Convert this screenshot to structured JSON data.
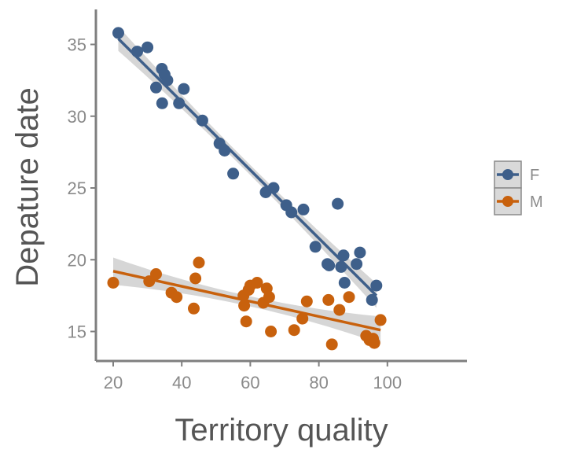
{
  "chart_data": {
    "type": "scatter",
    "xlabel": "Territory quality",
    "ylabel": "Depature date",
    "xlim": [
      17,
      102
    ],
    "ylim": [
      13,
      37
    ],
    "xticks": [
      20,
      40,
      60,
      80,
      100
    ],
    "yticks": [
      15,
      20,
      25,
      30,
      35
    ],
    "grid": false,
    "legend_position": "right",
    "series": [
      {
        "name": "F",
        "color": "#3e5f8a",
        "points": [
          [
            21.5,
            35.8
          ],
          [
            27,
            34.5
          ],
          [
            30,
            34.8
          ],
          [
            32.5,
            32
          ],
          [
            34.2,
            33.3
          ],
          [
            35,
            32.9
          ],
          [
            35.8,
            32.5
          ],
          [
            34.3,
            30.9
          ],
          [
            40.6,
            31.9
          ],
          [
            39.2,
            30.9
          ],
          [
            46,
            29.7
          ],
          [
            51,
            28.1
          ],
          [
            52.5,
            27.6
          ],
          [
            55,
            26
          ],
          [
            64.5,
            24.7
          ],
          [
            66.8,
            25
          ],
          [
            70.5,
            23.8
          ],
          [
            72,
            23.3
          ],
          [
            75.5,
            23.5
          ],
          [
            79,
            20.9
          ],
          [
            82.5,
            19.7
          ],
          [
            83,
            19.6
          ],
          [
            85.5,
            23.9
          ],
          [
            86.5,
            19.5
          ],
          [
            87.2,
            20.3
          ],
          [
            87.5,
            18.4
          ],
          [
            91,
            19.7
          ],
          [
            92,
            20.5
          ],
          [
            95.5,
            17.2
          ],
          [
            96.8,
            18.2
          ]
        ],
        "fit": {
          "x": [
            21.5,
            96.8
          ],
          "y": [
            35.4,
            17.5
          ]
        }
      },
      {
        "name": "M",
        "color": "#c8610d",
        "points": [
          [
            20,
            18.4
          ],
          [
            30.5,
            18.5
          ],
          [
            32.5,
            19
          ],
          [
            37,
            17.7
          ],
          [
            38.5,
            17.4
          ],
          [
            43.5,
            16.6
          ],
          [
            44,
            18.7
          ],
          [
            45,
            19.8
          ],
          [
            58,
            17.5
          ],
          [
            58.2,
            16.8
          ],
          [
            58.8,
            15.7
          ],
          [
            59.5,
            17.9
          ],
          [
            60,
            18.2
          ],
          [
            62,
            18.4
          ],
          [
            63.8,
            17
          ],
          [
            64.8,
            18
          ],
          [
            65.5,
            17.4
          ],
          [
            66,
            15
          ],
          [
            72.8,
            15.1
          ],
          [
            75.2,
            15.9
          ],
          [
            76.5,
            17.1
          ],
          [
            82.8,
            17.2
          ],
          [
            83.8,
            14.1
          ],
          [
            86,
            16.5
          ],
          [
            88.8,
            17.4
          ],
          [
            93.8,
            14.7
          ],
          [
            94.8,
            14.4
          ],
          [
            95.8,
            14.5
          ],
          [
            96.2,
            14.2
          ],
          [
            98,
            15.8
          ]
        ],
        "fit": {
          "x": [
            20,
            98
          ],
          "y": [
            19.2,
            15.1
          ]
        }
      }
    ]
  }
}
